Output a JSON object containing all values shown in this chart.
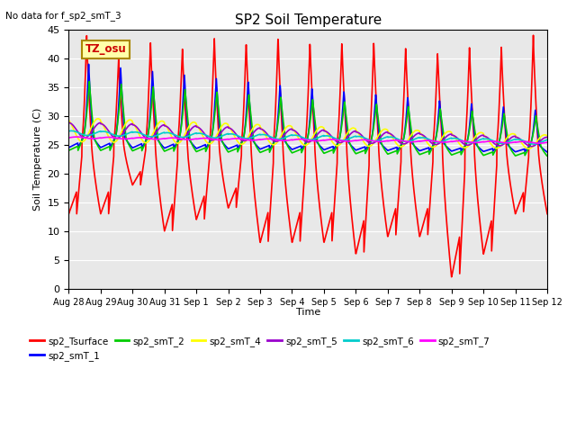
{
  "title": "SP2 Soil Temperature",
  "subtitle": "No data for f_sp2_smT_3",
  "ylabel": "Soil Temperature (C)",
  "xlabel": "Time",
  "ylim": [
    0,
    45
  ],
  "tz_label": "TZ_osu",
  "background_color": "#ffffff",
  "plot_bg_color": "#e8e8e8",
  "series": {
    "sp2_Tsurface": {
      "color": "#ff0000",
      "lw": 1.2
    },
    "sp2_smT_1": {
      "color": "#0000ff",
      "lw": 1.2
    },
    "sp2_smT_2": {
      "color": "#00cc00",
      "lw": 1.2
    },
    "sp2_smT_4": {
      "color": "#ffff00",
      "lw": 1.2
    },
    "sp2_smT_5": {
      "color": "#9900cc",
      "lw": 1.2
    },
    "sp2_smT_6": {
      "color": "#00cccc",
      "lw": 1.2
    },
    "sp2_smT_7": {
      "color": "#ff00ff",
      "lw": 1.2
    }
  },
  "xtick_labels": [
    "Aug 28",
    "Aug 29",
    "Aug 30",
    "Aug 31",
    "Sep 1",
    "Sep 2",
    "Sep 3",
    "Sep 4",
    "Sep 5",
    "Sep 6",
    "Sep 7",
    "Sep 8",
    "Sep 9",
    "Sep 10",
    "Sep 11",
    "Sep 12"
  ],
  "ytick_labels": [
    0,
    5,
    10,
    15,
    20,
    25,
    30,
    35,
    40,
    45
  ],
  "n_days": 15,
  "pts_per_day": 144
}
